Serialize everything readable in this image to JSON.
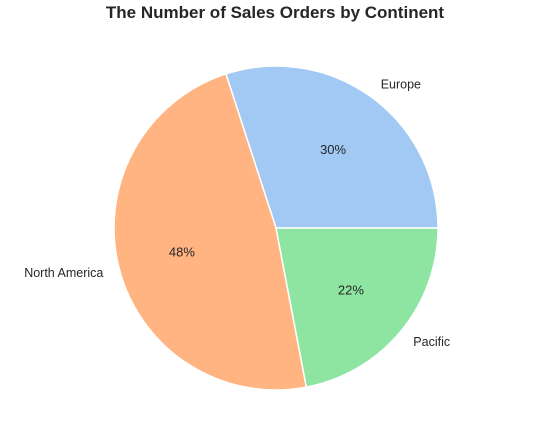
{
  "chart_data": {
    "type": "pie",
    "title": "The Number of Sales Orders by Continent",
    "categories": [
      "Europe",
      "North America",
      "Pacific"
    ],
    "values": [
      30,
      48,
      22
    ],
    "percent_labels": [
      "30%",
      "48%",
      "22%"
    ],
    "colors": [
      "#a1c9f4",
      "#ffb482",
      "#8de5a1"
    ],
    "start_angle_deg": 0,
    "direction": "counterclockwise",
    "legend": "none"
  }
}
